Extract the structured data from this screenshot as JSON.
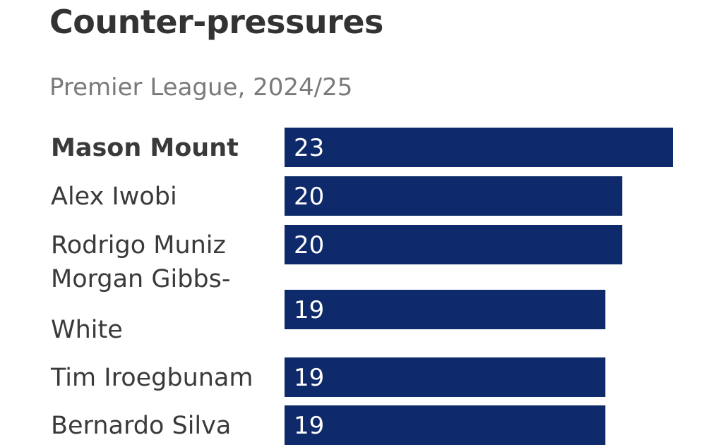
{
  "title": "Counter-pressures",
  "subtitle": "Premier League, 2024/25",
  "chart_data": {
    "type": "bar",
    "orientation": "horizontal",
    "categories": [
      "Mason Mount",
      "Alex Iwobi",
      "Rodrigo Muniz",
      "Morgan Gibbs-White",
      "Tim Iroegbunam",
      "Bernardo Silva"
    ],
    "values": [
      23,
      20,
      20,
      19,
      19,
      19
    ],
    "highlighted": [
      "Mason Mount"
    ],
    "bar_color": "#0f2a6b",
    "value_label_color": "#ffffff",
    "xlim": [
      0,
      23
    ],
    "grid": false,
    "legend": "none"
  }
}
